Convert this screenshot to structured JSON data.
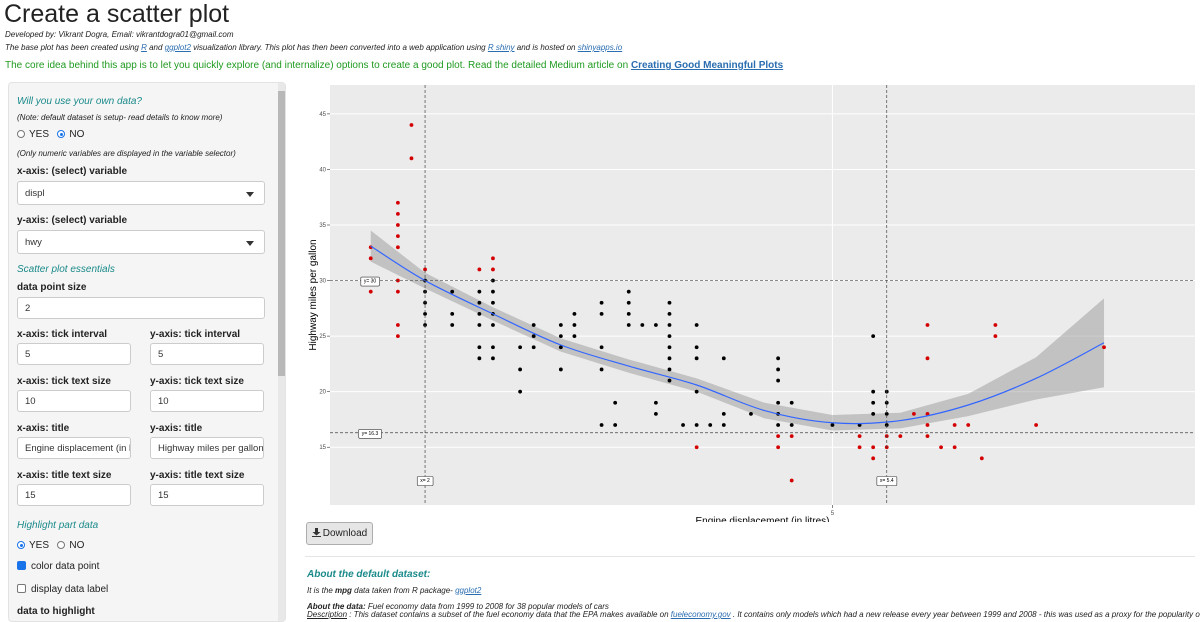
{
  "header": {
    "title": "Create a scatter plot",
    "developer": "Developed by: Vikrant Dogra, Email: vikrantdogra01@gmail.com",
    "base_line": [
      "The base plot has been created using ",
      "R",
      " and ",
      "ggplot2",
      " visualization library. This plot has then been converted into a web application using ",
      "R shiny",
      " and is hosted on ",
      "shinyapps.io"
    ],
    "core_idea": [
      "The core idea behind this app is to let you quickly explore (and internalize) options to create a good plot. Read the detailed Medium article on ",
      "Creating Good Meaningful Plots"
    ]
  },
  "sidebar": {
    "own_data_title": "Will you use your own data?",
    "own_data_note": "(Note: default dataset is setup- read details to know more)",
    "own_data_options": [
      "YES",
      "NO"
    ],
    "numeric_note": "(Only numeric variables are displayed in the variable selector)",
    "x_var_label": "x-axis: (select) variable",
    "x_var": "displ",
    "y_var_label": "y-axis: (select) variable",
    "y_var": "hwy",
    "essentials_title": "Scatter plot essentials",
    "point_size_label": "data point size",
    "point_size": "2",
    "x_tick_interval_label": "x-axis: tick interval",
    "x_tick_interval": "5",
    "y_tick_interval_label": "y-axis: tick interval",
    "y_tick_interval": "5",
    "x_tick_size_label": "x-axis: tick text size",
    "x_tick_size": "10",
    "y_tick_size_label": "y-axis: tick text size",
    "y_tick_size": "10",
    "x_title_label": "x-axis: title",
    "x_title": "Engine displacement (in litres)",
    "y_title_label": "y-axis: title",
    "y_title": "Highway miles per gallon",
    "x_title_size_label": "x-axis: title text size",
    "x_title_size": "15",
    "y_title_size_label": "y-axis: title text size",
    "y_title_size": "15",
    "highlight_title": "Highlight part data",
    "highlight_options": [
      "YES",
      "NO"
    ],
    "color_point": "color data point",
    "display_label": "display data label",
    "data_to_highlight": "data to highlight"
  },
  "download": "Download",
  "chart_data": {
    "type": "scatter",
    "xlabel": "Engine displacement (in litres)",
    "ylabel": "Highway miles per gallon",
    "xlim": [
      1.3,
      7.67
    ],
    "ylim": [
      9.8,
      47.6
    ],
    "xticks": [
      5
    ],
    "yticks": [
      15,
      20,
      25,
      30,
      35,
      40,
      45
    ],
    "grid": true,
    "color": "#000000",
    "highlight_color": "#d40000",
    "vlines": [
      {
        "value": 2,
        "label": "x= 2"
      },
      {
        "value": 5.4,
        "label": "x= 5.4"
      }
    ],
    "hlines": [
      {
        "value": 30,
        "label": "y= 30"
      },
      {
        "value": 16.3,
        "label": "y= 16.3"
      }
    ],
    "x": [
      1.6,
      1.6,
      1.6,
      1.8,
      1.8,
      1.8,
      1.8,
      1.8,
      1.8,
      1.8,
      1.8,
      1.8,
      1.9,
      1.9,
      2.0,
      2.0,
      2.0,
      2.0,
      2.0,
      2.0,
      2.2,
      2.2,
      2.2,
      2.4,
      2.4,
      2.4,
      2.4,
      2.4,
      2.4,
      2.4,
      2.5,
      2.5,
      2.5,
      2.5,
      2.5,
      2.5,
      2.5,
      2.5,
      2.5,
      2.7,
      2.7,
      2.7,
      2.8,
      2.8,
      2.8,
      3.0,
      3.0,
      3.0,
      3.0,
      3.1,
      3.1,
      3.1,
      3.3,
      3.3,
      3.3,
      3.3,
      3.3,
      3.4,
      3.4,
      3.5,
      3.5,
      3.5,
      3.5,
      3.6,
      3.7,
      3.7,
      3.7,
      3.8,
      3.8,
      3.8,
      3.8,
      3.8,
      3.8,
      3.8,
      3.8,
      3.9,
      4.0,
      4.0,
      4.0,
      4.0,
      4.0,
      4.0,
      4.1,
      4.2,
      4.2,
      4.2,
      4.4,
      4.6,
      4.6,
      4.6,
      4.6,
      4.6,
      4.6,
      4.6,
      4.6,
      4.7,
      4.7,
      4.7,
      4.7,
      5.0,
      5.2,
      5.2,
      5.2,
      5.3,
      5.3,
      5.3,
      5.3,
      5.3,
      5.3,
      5.4,
      5.4,
      5.4,
      5.4,
      5.4,
      5.4,
      5.5,
      5.6,
      5.7,
      5.7,
      5.7,
      5.7,
      5.7,
      5.8,
      5.9,
      5.9,
      6.0,
      6.1,
      6.2,
      6.2,
      6.5,
      7.0
    ],
    "values": [
      33,
      32,
      29,
      37,
      36,
      35,
      34,
      33,
      30,
      29,
      26,
      25,
      44,
      41,
      31,
      30,
      29,
      28,
      27,
      26,
      29,
      27,
      26,
      31,
      29,
      28,
      27,
      26,
      24,
      23,
      32,
      31,
      30,
      29,
      28,
      27,
      26,
      24,
      23,
      24,
      22,
      20,
      26,
      25,
      24,
      26,
      25,
      24,
      22,
      27,
      26,
      25,
      28,
      27,
      24,
      22,
      17,
      19,
      17,
      29,
      28,
      27,
      26,
      26,
      26,
      19,
      18,
      28,
      27,
      26,
      25,
      24,
      23,
      22,
      21,
      17,
      26,
      24,
      23,
      20,
      17,
      15,
      17,
      23,
      18,
      17,
      18,
      23,
      22,
      21,
      19,
      18,
      17,
      16,
      15,
      19,
      17,
      16,
      12,
      17,
      17,
      16,
      15,
      25,
      20,
      19,
      18,
      15,
      14,
      20,
      19,
      18,
      17,
      16,
      15,
      16,
      18,
      26,
      23,
      18,
      17,
      16,
      15,
      17,
      15,
      17,
      14,
      26,
      25,
      17,
      24
    ],
    "smooth": {
      "color": "#3366ff",
      "band_color": "#999999",
      "x": [
        1.6,
        2,
        2.5,
        3,
        3.5,
        4,
        4.5,
        5,
        5.5,
        6,
        6.5,
        7
      ],
      "y": [
        33.1,
        30,
        27,
        24.2,
        22.3,
        20.6,
        18.3,
        17.2,
        17.4,
        18.8,
        21.2,
        24.4
      ],
      "lower": [
        31.7,
        29.3,
        26.4,
        23.6,
        21.7,
        20,
        17.6,
        16.5,
        16.7,
        17.8,
        19.3,
        20.4
      ],
      "upper": [
        34.5,
        30.7,
        27.6,
        24.8,
        22.9,
        21.2,
        19,
        17.9,
        18.1,
        19.8,
        23.1,
        28.4
      ]
    }
  },
  "about": {
    "title": "About the default dataset:",
    "source": [
      "It is the ",
      "mpg",
      " data taken from R package- ",
      "ggplot2"
    ],
    "data_label": "About the data:",
    "data_text": " Fuel economy data from 1999 to 2008 for 38 popular models of cars",
    "description_label": "Description",
    "description_text": " : This dataset contains a subset of the fuel economy data that the EPA makes available on ",
    "description_link": "fueleconomy.gov",
    "description_end": " . It contains only models which had a new release every year between 1999 and 2008 - this was used as a proxy for the popularity of the car."
  }
}
